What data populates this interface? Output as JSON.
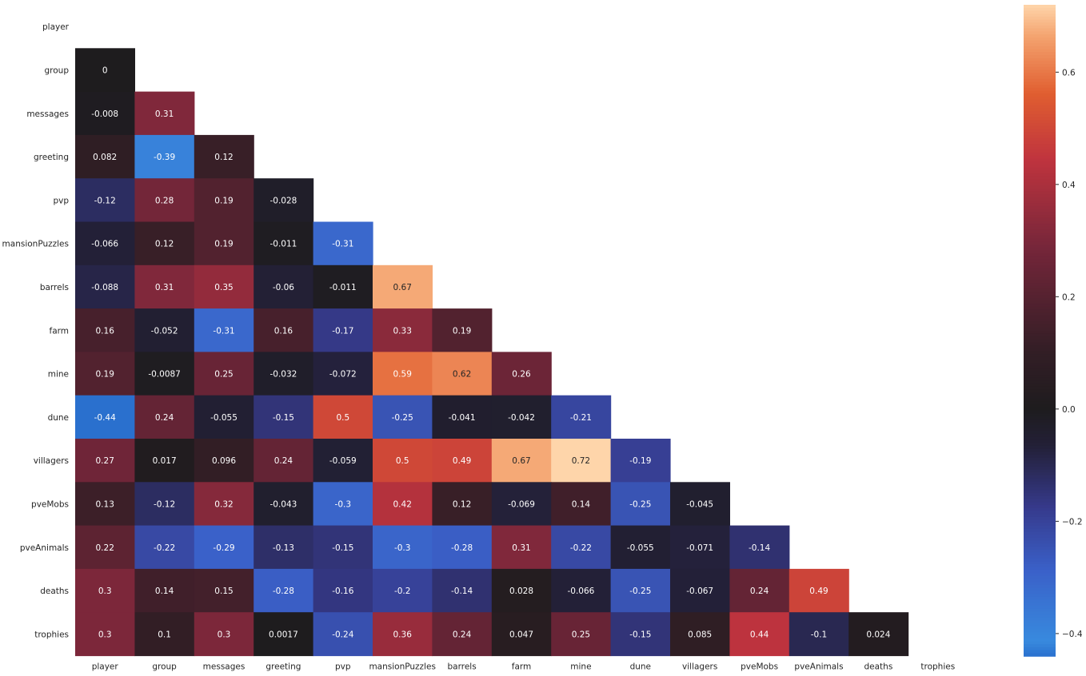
{
  "chart_data": {
    "type": "heatmap",
    "title": "",
    "xlabel": "",
    "ylabel": "",
    "mask": "upper-triangle-including-diagonal",
    "labels": [
      "player",
      "group",
      "messages",
      "greeting",
      "pvp",
      "mansionPuzzles",
      "barrels",
      "farm",
      "mine",
      "dune",
      "villagers",
      "pveMobs",
      "pveAnimals",
      "deaths",
      "trophies"
    ],
    "annotations": [
      [],
      [
        "0"
      ],
      [
        "-0.008",
        "0.31"
      ],
      [
        "0.082",
        "-0.39",
        "0.12"
      ],
      [
        "-0.12",
        "0.28",
        "0.19",
        "-0.028"
      ],
      [
        "-0.066",
        "0.12",
        "0.19",
        "-0.011",
        "-0.31"
      ],
      [
        "-0.088",
        "0.31",
        "0.35",
        "-0.06",
        "-0.011",
        "0.67"
      ],
      [
        "0.16",
        "-0.052",
        "-0.31",
        "0.16",
        "-0.17",
        "0.33",
        "0.19"
      ],
      [
        "0.19",
        "-0.0087",
        "0.25",
        "-0.032",
        "-0.072",
        "0.59",
        "0.62",
        "0.26"
      ],
      [
        "-0.44",
        "0.24",
        "-0.055",
        "-0.15",
        "0.5",
        "-0.25",
        "-0.041",
        "-0.042",
        "-0.21"
      ],
      [
        "0.27",
        "0.017",
        "0.096",
        "0.24",
        "-0.059",
        "0.5",
        "0.49",
        "0.67",
        "0.72",
        "-0.19"
      ],
      [
        "0.13",
        "-0.12",
        "0.32",
        "-0.043",
        "-0.3",
        "0.42",
        "0.12",
        "-0.069",
        "0.14",
        "-0.25",
        "-0.045"
      ],
      [
        "0.22",
        "-0.22",
        "-0.29",
        "-0.13",
        "-0.15",
        "-0.3",
        "-0.28",
        "0.31",
        "-0.22",
        "-0.055",
        "-0.071",
        "-0.14"
      ],
      [
        "0.3",
        "0.14",
        "0.15",
        "-0.28",
        "-0.16",
        "-0.2",
        "-0.14",
        "0.028",
        "-0.066",
        "-0.25",
        "-0.067",
        "0.24",
        "0.49"
      ],
      [
        "0.3",
        "0.1",
        "0.3",
        "0.0017",
        "-0.24",
        "0.36",
        "0.24",
        "0.047",
        "0.25",
        "-0.15",
        "0.085",
        "0.44",
        "-0.1",
        "0.024"
      ]
    ],
    "colorbar": {
      "colormap": "icefire-centered-at-0",
      "vmin": -0.44,
      "vmax": 0.72,
      "ticks": [
        -0.4,
        -0.2,
        0.0,
        0.2,
        0.4,
        0.6
      ],
      "tick_labels": [
        "−0.4",
        "−0.2",
        "0.0",
        "0.2",
        "0.4",
        "0.6"
      ]
    },
    "colors": {
      "background": "#ffffff",
      "label_text": "#262626",
      "annotation_light": "#ffffff",
      "annotation_dark": "#262626"
    }
  }
}
